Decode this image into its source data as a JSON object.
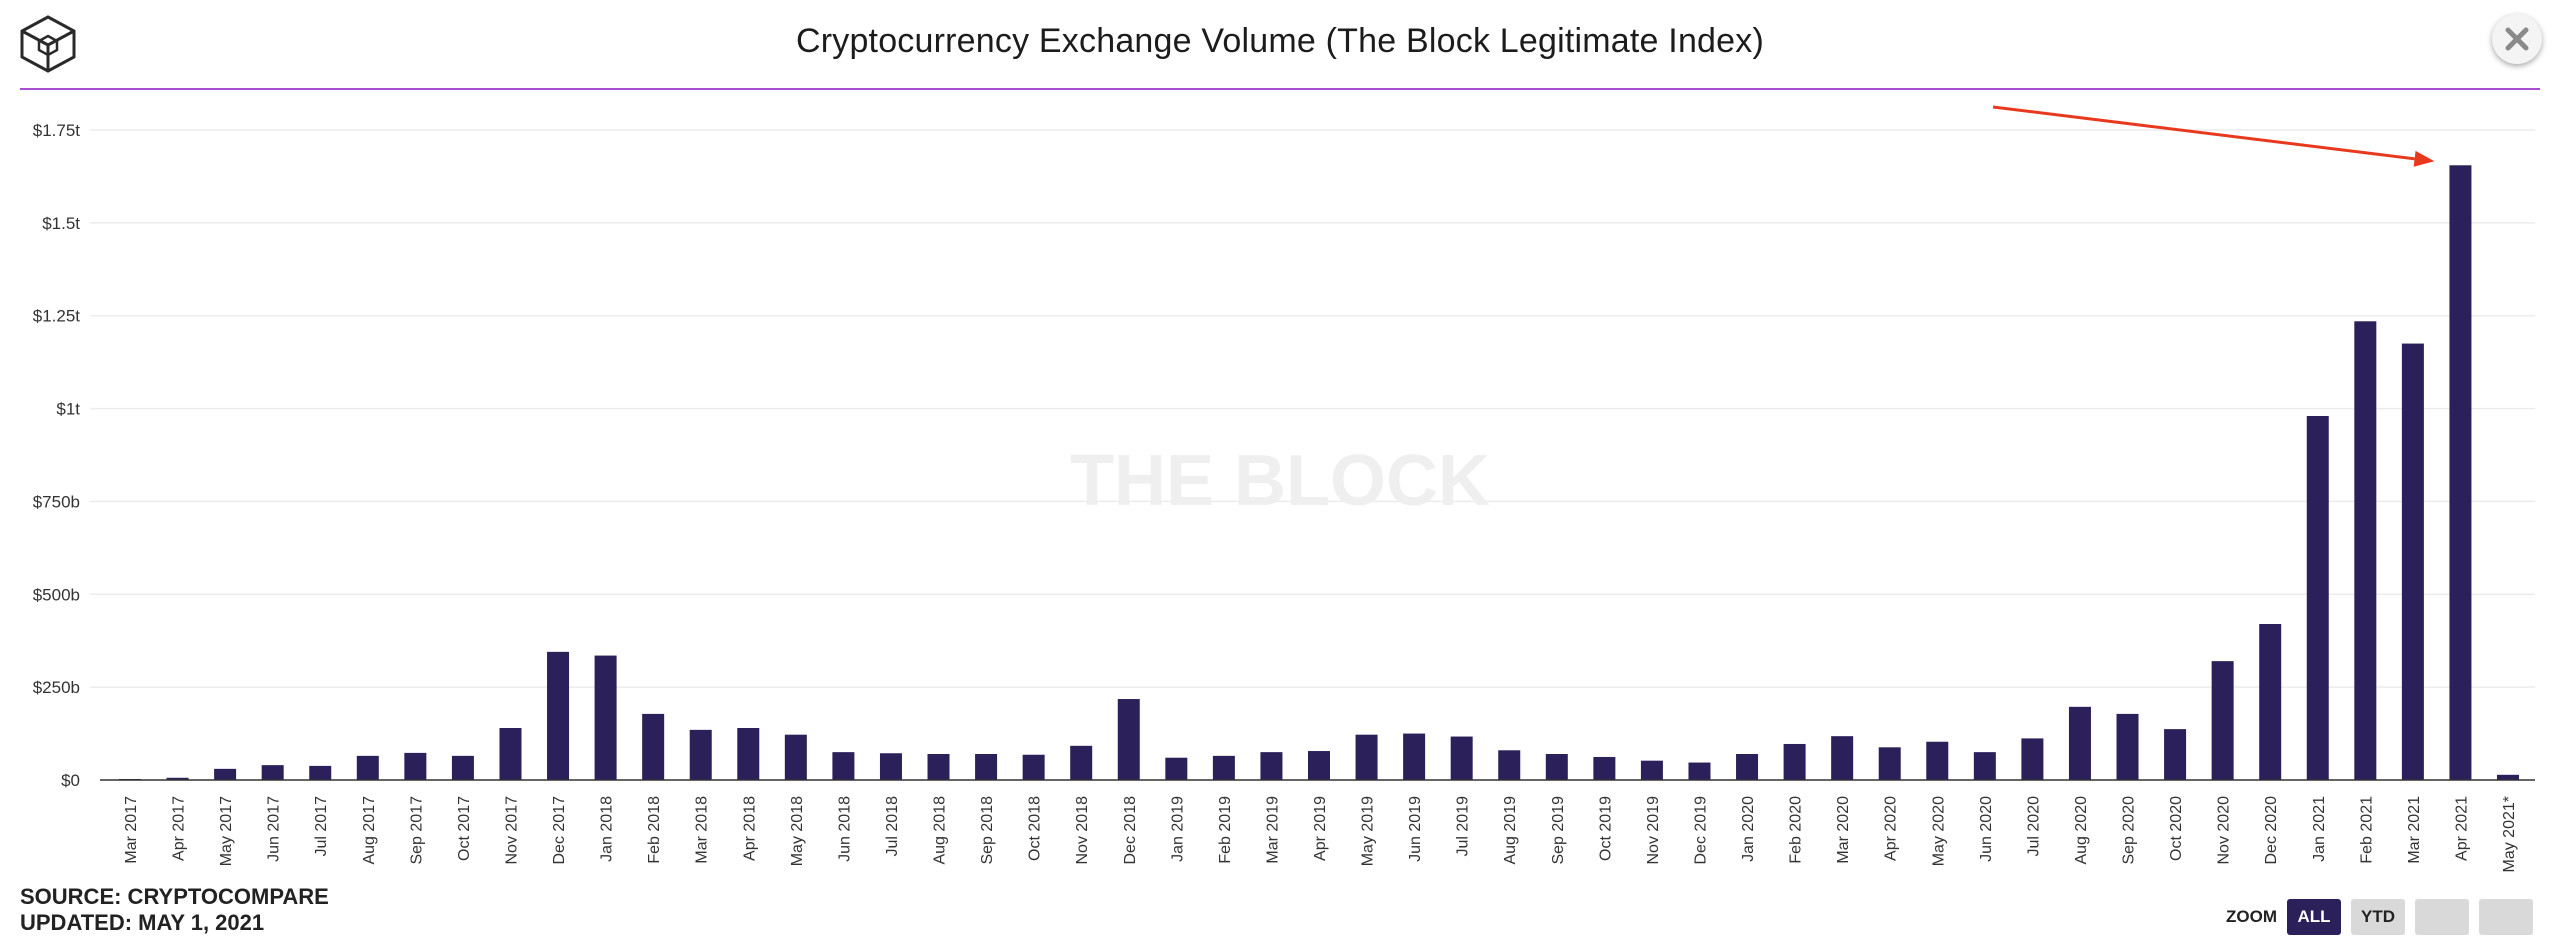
{
  "header": {
    "title": "Cryptocurrency Exchange Volume (The Block Legitimate Index)"
  },
  "watermark": "THE BLOCK",
  "footer": {
    "source": "SOURCE: CRYPTOCOMPARE",
    "updated": "UPDATED: MAY 1, 2021"
  },
  "zoom": {
    "label": "ZOOM",
    "buttons": [
      {
        "label": "ALL",
        "active": true
      },
      {
        "label": "YTD",
        "active": false
      },
      {
        "label": "",
        "active": false
      },
      {
        "label": "",
        "active": false
      }
    ]
  },
  "colors": {
    "bar": "#2b2059",
    "accent_line": "#a74fd0",
    "arrow": "#e8391f",
    "grid": "#ececec"
  },
  "icons": {
    "logo": "the-block-cube-logo-icon",
    "close": "close-icon"
  },
  "chart_data": {
    "type": "bar",
    "title": "Cryptocurrency Exchange Volume (The Block Legitimate Index)",
    "xlabel": "",
    "ylabel": "",
    "ylim": [
      0,
      1.75
    ],
    "y_unit": "trillion USD",
    "y_ticks": [
      {
        "value": 0,
        "label": "$0"
      },
      {
        "value": 0.25,
        "label": "$250b"
      },
      {
        "value": 0.5,
        "label": "$500b"
      },
      {
        "value": 0.75,
        "label": "$750b"
      },
      {
        "value": 1.0,
        "label": "$1t"
      },
      {
        "value": 1.25,
        "label": "$1.25t"
      },
      {
        "value": 1.5,
        "label": "$1.5t"
      },
      {
        "value": 1.75,
        "label": "$1.75t"
      }
    ],
    "grid": true,
    "legend": "none",
    "categories": [
      "Mar 2017",
      "Apr 2017",
      "May 2017",
      "Jun 2017",
      "Jul 2017",
      "Aug 2017",
      "Sep 2017",
      "Oct 2017",
      "Nov 2017",
      "Dec 2017",
      "Jan 2018",
      "Feb 2018",
      "Mar 2018",
      "Apr 2018",
      "May 2018",
      "Jun 2018",
      "Jul 2018",
      "Aug 2018",
      "Sep 2018",
      "Oct 2018",
      "Nov 2018",
      "Dec 2018",
      "Jan 2019",
      "Feb 2019",
      "Mar 2019",
      "Apr 2019",
      "May 2019",
      "Jun 2019",
      "Jul 2019",
      "Aug 2019",
      "Sep 2019",
      "Oct 2019",
      "Nov 2019",
      "Dec 2019",
      "Jan 2020",
      "Feb 2020",
      "Mar 2020",
      "Apr 2020",
      "May 2020",
      "Jun 2020",
      "Jul 2020",
      "Aug 2020",
      "Sep 2020",
      "Oct 2020",
      "Nov 2020",
      "Dec 2020",
      "Jan 2021",
      "Feb 2021",
      "Mar 2021",
      "Apr 2021",
      "May 2021*"
    ],
    "values": [
      0.002,
      0.006,
      0.03,
      0.04,
      0.038,
      0.065,
      0.073,
      0.065,
      0.14,
      0.345,
      0.335,
      0.178,
      0.135,
      0.14,
      0.122,
      0.075,
      0.072,
      0.07,
      0.07,
      0.068,
      0.092,
      0.218,
      0.06,
      0.065,
      0.075,
      0.078,
      0.122,
      0.125,
      0.117,
      0.08,
      0.07,
      0.062,
      0.052,
      0.047,
      0.07,
      0.097,
      0.118,
      0.088,
      0.103,
      0.075,
      0.112,
      0.197,
      0.178,
      0.137,
      0.32,
      0.42,
      0.98,
      1.235,
      1.175,
      1.655,
      0.014
    ],
    "annotations": [
      {
        "type": "arrow",
        "points_to": "Apr 2021"
      }
    ]
  }
}
